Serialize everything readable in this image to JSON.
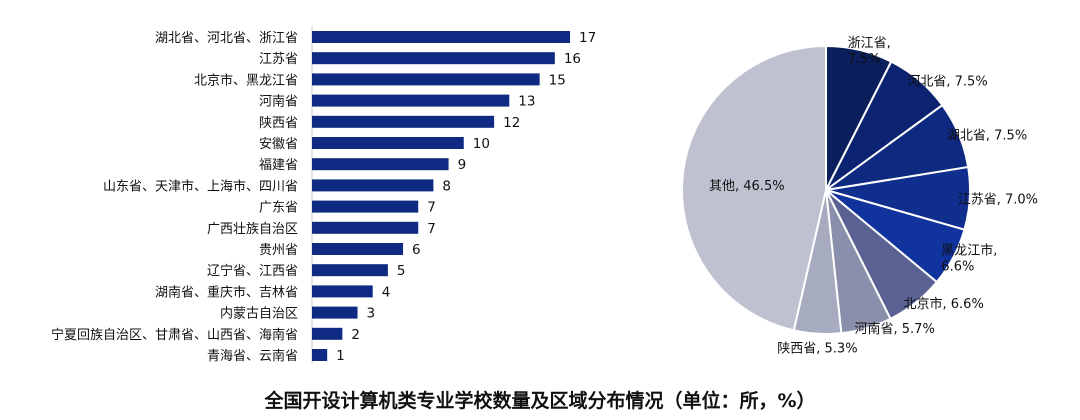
{
  "caption": "全国开设计算机类专业学校数量及区域分布情况（单位：所，%）",
  "colors": {
    "bar": "#0F2A82",
    "pie": [
      "#0A1F5C",
      "#0B2370",
      "#0E2A80",
      "#0F2E8E",
      "#10339E",
      "#5A6294",
      "#8A90AC",
      "#A7ABC0",
      "#BFC1D0"
    ]
  },
  "chart_data": [
    {
      "type": "bar",
      "orientation": "horizontal",
      "categories": [
        "湖北省、河北省、浙江省",
        "江苏省",
        "北京市、黑龙江省",
        "河南省",
        "陕西省",
        "安徽省",
        "福建省",
        "山东省、天津市、上海市、四川省",
        "广东省",
        "广西壮族自治区",
        "贵州省",
        "辽宁省、江西省",
        "湖南省、重庆市、吉林省",
        "内蒙古自治区",
        "宁夏回族自治区、甘肃省、山西省、海南省",
        "青海省、云南省"
      ],
      "values": [
        17,
        16,
        15,
        13,
        12,
        10,
        9,
        8,
        7,
        7,
        6,
        5,
        4,
        3,
        2,
        1
      ],
      "data_labels": [
        "17",
        "16",
        "15",
        "13",
        "12",
        "10",
        "9",
        "8",
        "7",
        "7",
        "6",
        "5",
        "4",
        "3",
        "2",
        "1"
      ],
      "xlim": [
        0,
        17
      ],
      "grid": false
    },
    {
      "type": "pie",
      "start": "top",
      "direction": "clockwise",
      "slices": [
        {
          "name": "浙江省",
          "value": 7.5,
          "label": "浙江省,\n7.5%"
        },
        {
          "name": "河北省",
          "value": 7.5,
          "label": "河北省, 7.5%"
        },
        {
          "name": "湖北省",
          "value": 7.5,
          "label": "湖北省, 7.5%"
        },
        {
          "name": "江苏省",
          "value": 7.0,
          "label": "江苏省, 7.0%"
        },
        {
          "name": "黑龙江市",
          "value": 6.6,
          "label": "黑龙江市,\n6.6%"
        },
        {
          "name": "北京市",
          "value": 6.6,
          "label": "北京市, 6.6%"
        },
        {
          "name": "河南省",
          "value": 5.7,
          "label": "河南省, 5.7%"
        },
        {
          "name": "陕西省",
          "value": 5.3,
          "label": "陕西省, 5.3%"
        },
        {
          "name": "其他",
          "value": 46.5,
          "label": "其他, 46.5%"
        }
      ]
    }
  ]
}
